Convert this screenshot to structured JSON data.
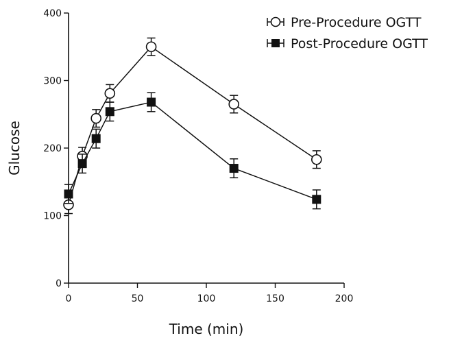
{
  "chart_data": {
    "type": "line",
    "xlabel": "Time (min)",
    "ylabel": "Glucose",
    "xlim": [
      0,
      200
    ],
    "ylim": [
      0,
      400
    ],
    "xticks": [
      "0",
      "50",
      "100",
      "150",
      "200"
    ],
    "yticks": [
      "0",
      "100",
      "200",
      "300",
      "400"
    ],
    "grid": false,
    "legend_position": "top-right",
    "x": [
      0,
      10,
      20,
      30,
      60,
      120,
      180
    ],
    "series": [
      {
        "name": "Pre-Procedure OGTT",
        "marker": "open-circle",
        "values": [
          116,
          188,
          244,
          281,
          350,
          265,
          183
        ],
        "errors": [
          13,
          13,
          13,
          13,
          13,
          13,
          13
        ]
      },
      {
        "name": "Post-Procedure OGTT",
        "marker": "filled-square",
        "values": [
          132,
          177,
          214,
          254,
          268,
          170,
          124
        ],
        "errors": [
          14,
          14,
          14,
          14,
          14,
          14,
          14
        ]
      }
    ]
  }
}
